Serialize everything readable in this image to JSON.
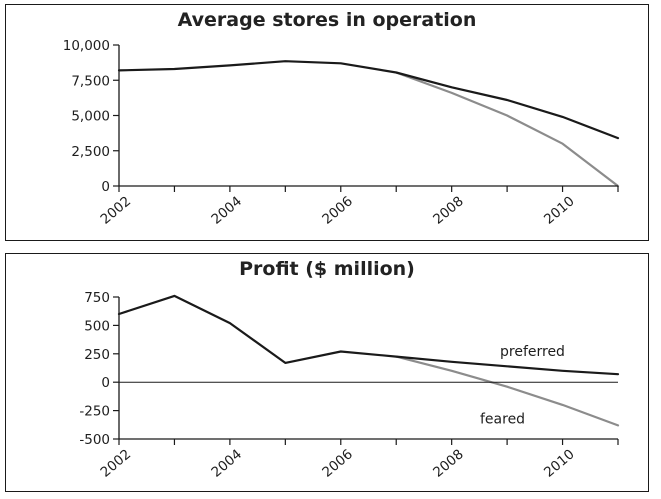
{
  "chart_data": [
    {
      "type": "line",
      "title": "Average stores in operation",
      "xlabel": "",
      "ylabel": "",
      "xlim": [
        2002,
        2011
      ],
      "ylim": [
        0,
        10000
      ],
      "x_ticks": [
        2002,
        2004,
        2006,
        2008,
        2010
      ],
      "x_tick_labels": [
        "2002",
        "2004",
        "2006",
        "2008",
        "2010"
      ],
      "y_ticks": [
        0,
        2500,
        5000,
        7500,
        10000
      ],
      "y_tick_labels": [
        "0",
        "2,500",
        "5,000",
        "7,500",
        "10,000"
      ],
      "grid": false,
      "series": [
        {
          "name": "",
          "color": "#1a1a1a",
          "x": [
            2002,
            2003,
            2004,
            2005,
            2006,
            2007,
            2008,
            2009,
            2010,
            2011
          ],
          "y": [
            8200,
            8300,
            8550,
            8850,
            8700,
            8050,
            7000,
            6100,
            4900,
            3400
          ]
        },
        {
          "name": "",
          "color": "#8c8c8c",
          "x": [
            2007,
            2008,
            2009,
            2010,
            2011
          ],
          "y": [
            8050,
            6600,
            5000,
            3000,
            0
          ]
        }
      ]
    },
    {
      "type": "line",
      "title": "Profit ($ million)",
      "xlabel": "",
      "ylabel": "",
      "xlim": [
        2002,
        2011
      ],
      "ylim": [
        -500,
        750
      ],
      "x_ticks": [
        2002,
        2004,
        2006,
        2008,
        2010
      ],
      "x_tick_labels": [
        "2002",
        "2004",
        "2006",
        "2008",
        "2010"
      ],
      "y_ticks": [
        -500,
        -250,
        0,
        250,
        500,
        750
      ],
      "y_tick_labels": [
        "-500",
        "-250",
        "0",
        "250",
        "500",
        "750"
      ],
      "grid": false,
      "zero_line": true,
      "series": [
        {
          "name": "preferred",
          "color": "#1a1a1a",
          "x": [
            2002,
            2003,
            2004,
            2005,
            2006,
            2007,
            2008,
            2009,
            2010,
            2011
          ],
          "y": [
            600,
            760,
            520,
            170,
            270,
            225,
            180,
            140,
            100,
            70
          ]
        },
        {
          "name": "feared",
          "color": "#8c8c8c",
          "x": [
            2007,
            2008,
            2009,
            2010,
            2011
          ],
          "y": [
            225,
            100,
            -40,
            -200,
            -380
          ]
        }
      ]
    }
  ]
}
